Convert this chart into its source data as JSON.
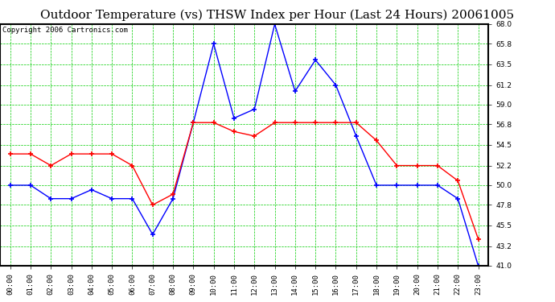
{
  "title": "Outdoor Temperature (vs) THSW Index per Hour (Last 24 Hours) 20061005",
  "copyright": "Copyright 2006 Cartronics.com",
  "hours": [
    "00:00",
    "01:00",
    "02:00",
    "03:00",
    "04:00",
    "05:00",
    "06:00",
    "07:00",
    "08:00",
    "09:00",
    "10:00",
    "11:00",
    "12:00",
    "13:00",
    "14:00",
    "15:00",
    "16:00",
    "17:00",
    "18:00",
    "19:00",
    "20:00",
    "21:00",
    "22:00",
    "23:00"
  ],
  "outdoor_temp": [
    50.0,
    50.0,
    48.5,
    48.5,
    49.5,
    48.5,
    48.5,
    44.5,
    48.5,
    57.0,
    65.8,
    57.5,
    58.5,
    68.0,
    60.5,
    64.0,
    61.2,
    55.5,
    50.0,
    50.0,
    50.0,
    50.0,
    48.5,
    41.0
  ],
  "thsw_index": [
    53.5,
    53.5,
    52.2,
    53.5,
    53.5,
    53.5,
    52.2,
    47.8,
    49.0,
    57.0,
    57.0,
    56.0,
    55.5,
    57.0,
    57.0,
    57.0,
    57.0,
    57.0,
    55.0,
    52.2,
    52.2,
    52.2,
    50.5,
    44.0
  ],
  "temp_color": "blue",
  "thsw_color": "red",
  "bg_color": "#ffffff",
  "plot_bg_color": "#ffffff",
  "grid_color": "#00cc00",
  "border_color": "#000000",
  "ylim": [
    41.0,
    68.0
  ],
  "yticks": [
    41.0,
    43.2,
    45.5,
    47.8,
    50.0,
    52.2,
    54.5,
    56.8,
    59.0,
    61.2,
    63.5,
    65.8,
    68.0
  ],
  "title_fontsize": 11,
  "copyright_fontsize": 6.5,
  "tick_fontsize": 6.5,
  "marker": "+"
}
